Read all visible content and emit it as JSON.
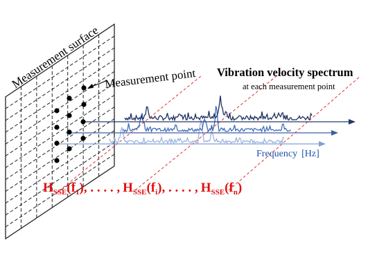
{
  "labels": {
    "measurement_surface": "Measurement surface",
    "measurement_point": "Measurement point",
    "spectrum_title": "Vibration velocity spectrum",
    "spectrum_subtitle": "at each measurement point",
    "frequency_axis": "Frequency",
    "frequency_unit": "[Hz]"
  },
  "equation": {
    "h": "H",
    "sub": "SSE",
    "f": "f",
    "first_index": "1",
    "mid_index": "i",
    "last_index": "n",
    "dots": " . . . . ",
    "comma": ","
  },
  "colors": {
    "surface_line": "#222222",
    "spectrum_dark": "#1c2f5c",
    "spectrum_mid": "#3f6cb8",
    "spectrum_light": "#9ab4dd",
    "axis_blue": "#3a5da8",
    "guide_red": "#e03030",
    "equation_red": "#e01010"
  }
}
